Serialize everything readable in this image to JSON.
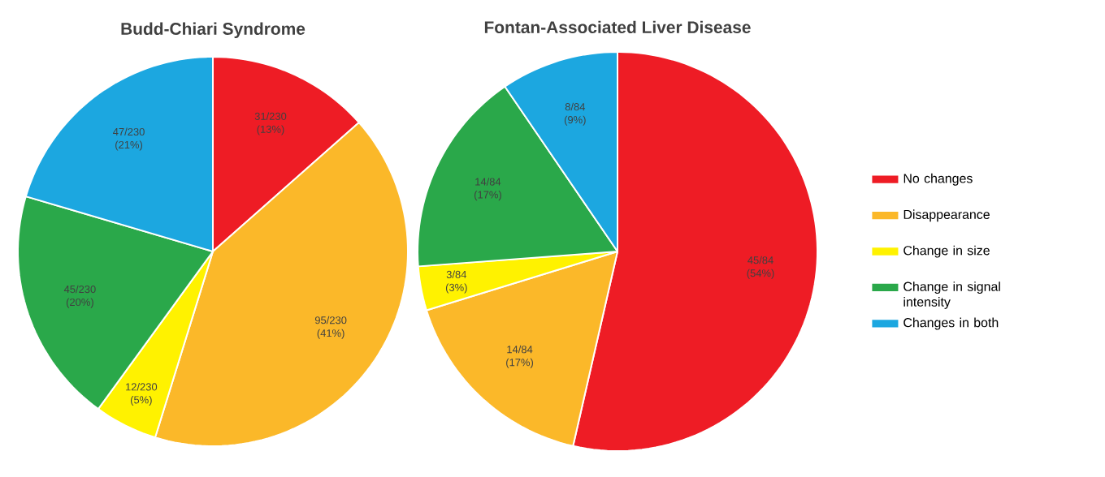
{
  "chart_data": [
    {
      "type": "pie",
      "title": "Budd-Chiari Syndrome",
      "categories": [
        null,
        null,
        null,
        null,
        null
      ],
      "values": [
        31,
        95,
        12,
        45,
        47
      ],
      "colors": [
        "#ee1c25",
        "#fbb829",
        "#fff200",
        "#2aa84a",
        "#1ca7e0"
      ],
      "value_labels": [
        "31/230 (13%)",
        "95/230 (41%)",
        "12/230 (5%)",
        "45/230 (20%)",
        "47/230 (21%)"
      ],
      "legend": false
    },
    {
      "type": "pie",
      "title": "Fontan-Associated Liver Disease",
      "categories": [
        "No changes",
        "Disappearance",
        "Change in size",
        "Change in signal intensity",
        "Changes in both"
      ],
      "values": [
        45,
        14,
        3,
        14,
        8
      ],
      "colors": [
        "#ee1c25",
        "#fbb829",
        "#fff200",
        "#2aa84a",
        "#1ca7e0"
      ],
      "value_labels": [
        "45/84 (54%)",
        "14/84 (17%)",
        "3/84 (3%)",
        "14/84 (17%)",
        "8/84 (9%)"
      ],
      "legend": "right"
    }
  ]
}
